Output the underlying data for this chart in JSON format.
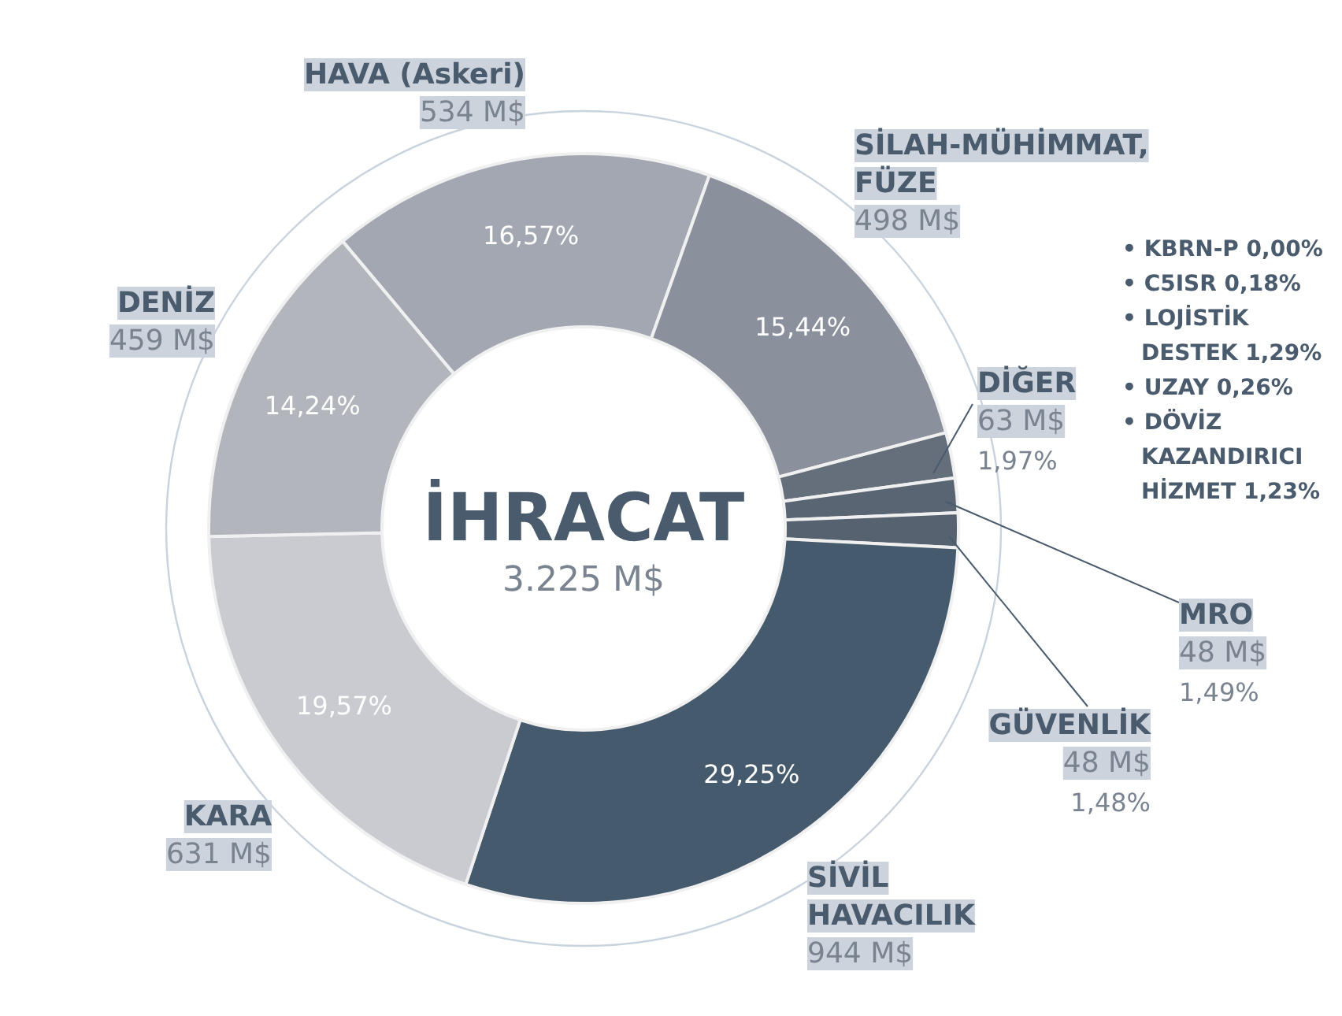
{
  "chart_data": {
    "type": "donut",
    "title": "İHRACAT",
    "subtitle": "3.225 M$",
    "categories": [
      "HAVA (Askeri)",
      "SİLAH-MÜHİMMAT, FÜZE",
      "DİĞER",
      "MRO",
      "GÜVENLİK",
      "SİVİL HAVACILIK",
      "KARA",
      "DENİZ"
    ],
    "values": [
      534,
      498,
      63,
      48,
      48,
      944,
      631,
      459
    ],
    "value_labels": [
      "534 M$",
      "498 M$",
      "63 M$",
      "48 M$",
      "48 M$",
      "944 M$",
      "631 M$",
      "459 M$"
    ],
    "colors": [
      "#a3a7b1",
      "#8a909c",
      "#656e7b",
      "#5a6573",
      "#56626f",
      "#465a6e",
      "#c9cbd1",
      "#b3b5bc"
    ],
    "annotations": [
      {
        "text": "16,57%",
        "x": "HAVA (Askeri)"
      },
      {
        "text": "15,44%",
        "x": "SİLAH-MÜHİMMAT, FÜZE"
      },
      {
        "text": "1,97%",
        "x": "DİĞER"
      },
      {
        "text": "1,49%",
        "x": "MRO"
      },
      {
        "text": "1,48%",
        "x": "GÜVENLİK"
      },
      {
        "text": "29,25%",
        "x": "SİVİL HAVACILIK"
      },
      {
        "text": "19,57%",
        "x": "KARA"
      },
      {
        "text": "14,24%",
        "x": "DENİZ"
      },
      "• KBRN-P 0,00%",
      "• C5ISR 0,18%",
      "• LOJİSTİK DESTEK 1,29%",
      "• UZAY 0,26%",
      "• DÖVİZ KAZANDIRICI HİZMET 1,23%"
    ]
  }
}
